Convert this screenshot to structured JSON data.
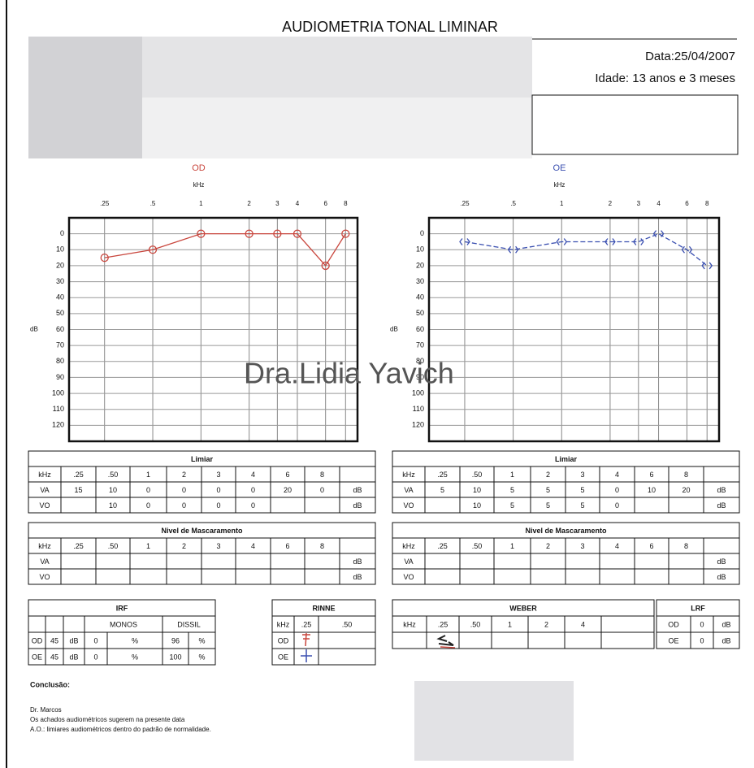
{
  "header": {
    "title": "AUDIOMETRIA TONAL LIMINAR",
    "date": "Data:25/04/2007",
    "age": "Idade: 13 anos e 3 meses"
  },
  "chart_data": [
    {
      "type": "line",
      "title": "OD",
      "xlabel": "kHz",
      "ylabel": "dB",
      "x": [
        0.25,
        0.5,
        1,
        2,
        3,
        4,
        6,
        8
      ],
      "values": [
        15,
        10,
        0,
        0,
        0,
        0,
        20,
        0
      ],
      "color": "#c9463d",
      "line_style": "solid",
      "marker": "circle",
      "xlim": [
        0.15,
        9.5
      ],
      "log_x": true,
      "xticks": [
        {
          "value": 0.25,
          "label": ".25"
        },
        {
          "value": 0.5,
          "label": ".5"
        },
        1,
        2,
        3,
        4,
        6,
        8
      ],
      "ylim": [
        -10,
        130
      ],
      "y_inverted": true,
      "yticks": [
        0,
        10,
        20,
        30,
        40,
        50,
        60,
        70,
        80,
        90,
        100,
        110,
        120
      ],
      "grid": true
    },
    {
      "type": "line",
      "title": "OE",
      "xlabel": "kHz",
      "ylabel": "dB",
      "x": [
        0.25,
        0.5,
        1,
        2,
        3,
        4,
        6,
        8
      ],
      "values": [
        5,
        10,
        5,
        5,
        5,
        0,
        10,
        20
      ],
      "color": "#3a4fb0",
      "line_style": "dashed",
      "marker": "bracket",
      "xlim": [
        0.15,
        9.5
      ],
      "log_x": true,
      "xticks": [
        {
          "value": 0.25,
          "label": ".25"
        },
        {
          "value": 0.5,
          "label": ".5"
        },
        1,
        2,
        3,
        4,
        6,
        8
      ],
      "ylim": [
        -10,
        130
      ],
      "y_inverted": true,
      "yticks": [
        0,
        10,
        20,
        30,
        40,
        50,
        60,
        70,
        80,
        90,
        100,
        110,
        120
      ],
      "grid": true
    }
  ],
  "tables": [
    {
      "header": "Limiar",
      "rows": [
        [
          "kHz",
          ".25",
          ".50",
          "1",
          "2",
          "3",
          "4",
          "6",
          "8",
          null
        ],
        [
          "VA",
          "15",
          "10",
          "0",
          "0",
          "0",
          "0",
          "20",
          "0",
          "dB"
        ],
        [
          "VO",
          null,
          "10",
          "0",
          "0",
          "0",
          "0",
          null,
          null,
          "dB"
        ]
      ]
    },
    {
      "header": "Limiar",
      "rows": [
        [
          "kHz",
          ".25",
          ".50",
          "1",
          "2",
          "3",
          "4",
          "6",
          "8",
          null
        ],
        [
          "VA",
          "5",
          "10",
          "5",
          "5",
          "5",
          "0",
          "10",
          "20",
          "dB"
        ],
        [
          "VO",
          null,
          "10",
          "5",
          "5",
          "5",
          "0",
          null,
          null,
          "dB"
        ]
      ]
    },
    {
      "header": "Nivel de Mascaramento",
      "rows": [
        [
          "kHz",
          ".25",
          ".50",
          "1",
          "2",
          "3",
          "4",
          "6",
          "8",
          null
        ],
        [
          "VA",
          null,
          null,
          null,
          null,
          null,
          null,
          null,
          null,
          "dB"
        ],
        [
          "VO",
          null,
          null,
          null,
          null,
          null,
          null,
          null,
          null,
          "dB"
        ]
      ]
    },
    {
      "header": "Nivel de Mascaramento",
      "rows": [
        [
          "kHz",
          ".25",
          ".50",
          "1",
          "2",
          "3",
          "4",
          "6",
          "8",
          null
        ],
        [
          "VA",
          null,
          null,
          null,
          null,
          null,
          null,
          null,
          null,
          "dB"
        ],
        [
          "VO",
          null,
          null,
          null,
          null,
          null,
          null,
          null,
          null,
          "dB"
        ]
      ]
    },
    {
      "header": "IRF",
      "rows": [
        [
          null,
          null,
          null,
          "MONOS",
          null,
          "DISSIL",
          null
        ],
        [
          "OD",
          "45",
          "dB",
          "0",
          "%",
          "96",
          "%"
        ],
        [
          "OE",
          "45",
          "dB",
          "0",
          "%",
          "100",
          "%"
        ]
      ]
    },
    {
      "header": "RINNE",
      "rows": [
        [
          "kHz",
          ".25",
          ".50"
        ],
        [
          "OD",
          null,
          null
        ],
        [
          "OE",
          null,
          null
        ]
      ]
    },
    {
      "header": "WEBER",
      "rows": [
        [
          "kHz",
          ".25",
          ".50",
          "1",
          "2",
          "4",
          null
        ],
        [
          null,
          null,
          null,
          null,
          null,
          null,
          null
        ]
      ]
    },
    {
      "header": "LRF",
      "rows": [
        [
          "OD",
          "0",
          "dB"
        ],
        [
          "OE",
          "0",
          "dB"
        ]
      ]
    }
  ],
  "watermark": "Dra.Lidia Yavich",
  "conclusion": {
    "label": "Conclusão:",
    "doctor": "Dr. Marcos",
    "lines": [
      "Os achados audiométricos sugerem na presente data",
      "A.O.: limiares audiométricos dentro do padrão de normalidade."
    ]
  }
}
